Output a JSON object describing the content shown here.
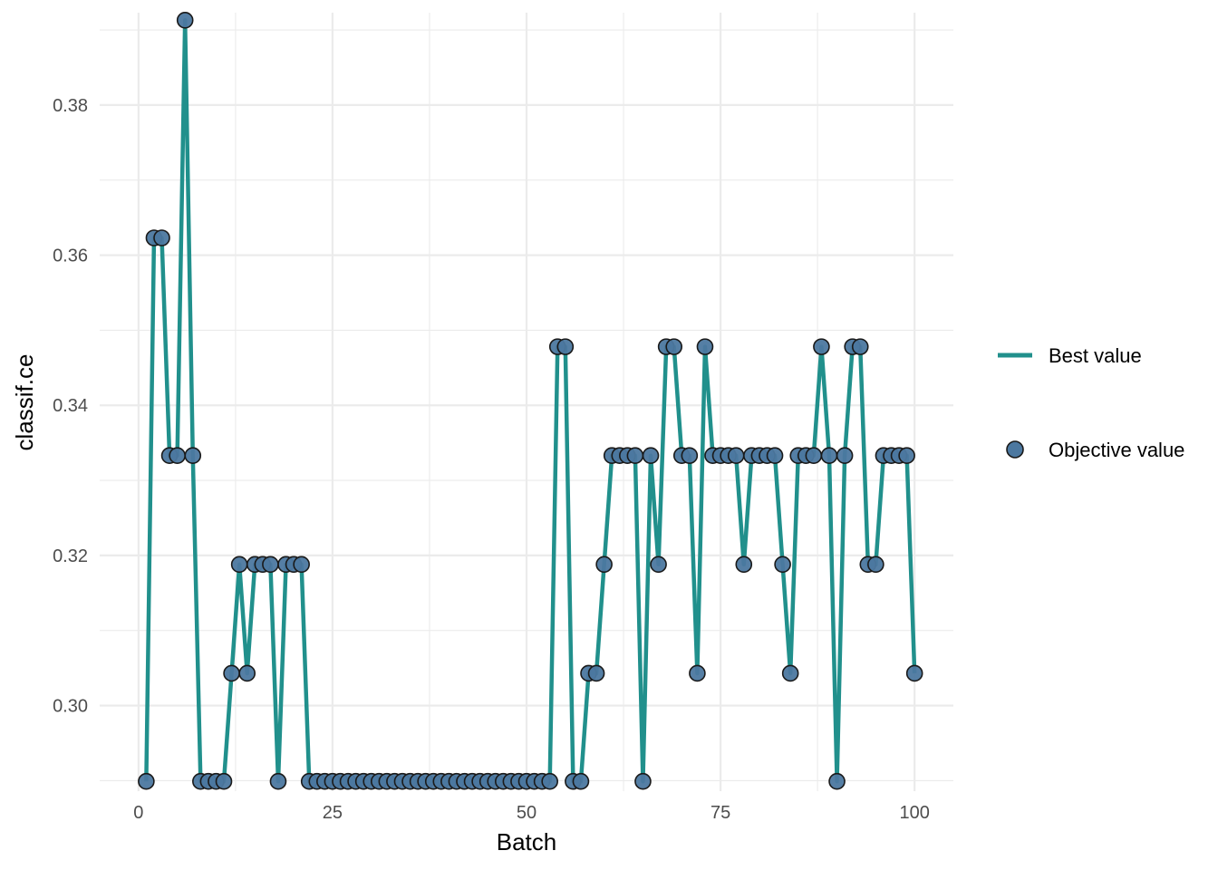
{
  "chart_data": {
    "type": "line",
    "xlabel": "Batch",
    "ylabel": "classif.ce",
    "xlim": [
      0,
      100
    ],
    "ylim": [
      0.2886,
      0.3923
    ],
    "x_ticks": [
      0,
      25,
      50,
      75,
      100
    ],
    "y_ticks": [
      0.3,
      0.32,
      0.34,
      0.36,
      0.38
    ],
    "x_tick_labels": [
      "0",
      "25",
      "50",
      "75",
      "100"
    ],
    "y_tick_labels": [
      "0.30",
      "0.32",
      "0.34",
      "0.36",
      "0.38"
    ],
    "grid": true,
    "legend_position": "right",
    "colors": {
      "line": "#21908C",
      "point_fill": "#4C78A0",
      "point_stroke": "#1a1a1a",
      "grid": "#ebebeb"
    },
    "series": [
      {
        "name": "Best value",
        "kind": "line",
        "x": [
          1,
          2,
          3,
          4,
          5,
          6,
          7,
          8,
          9,
          10,
          11,
          12,
          13,
          14,
          15,
          16,
          17,
          18,
          19,
          20,
          21,
          22,
          23,
          24,
          25,
          26,
          27,
          28,
          29,
          30,
          31,
          32,
          33,
          34,
          35,
          36,
          37,
          38,
          39,
          40,
          41,
          42,
          43,
          44,
          45,
          46,
          47,
          48,
          49,
          50,
          51,
          52,
          53,
          54,
          55,
          56,
          57,
          58,
          59,
          60,
          61,
          62,
          63,
          64,
          65,
          66,
          67,
          68,
          69,
          70,
          71,
          72,
          73,
          74,
          75,
          76,
          77,
          78,
          79,
          80,
          81,
          82,
          83,
          84,
          85,
          86,
          87,
          88,
          89,
          90,
          91,
          92,
          93,
          94,
          95,
          96,
          97,
          98,
          99,
          100
        ],
        "values": [
          0.2899,
          0.3623,
          0.3623,
          0.3333,
          0.3333,
          0.3913,
          0.3333,
          0.2899,
          0.2899,
          0.2899,
          0.2899,
          0.3043,
          0.3188,
          0.3043,
          0.3188,
          0.3188,
          0.3188,
          0.2899,
          0.3188,
          0.3188,
          0.3188,
          0.2899,
          0.2899,
          0.2899,
          0.2899,
          0.2899,
          0.2899,
          0.2899,
          0.2899,
          0.2899,
          0.2899,
          0.2899,
          0.2899,
          0.2899,
          0.2899,
          0.2899,
          0.2899,
          0.2899,
          0.2899,
          0.2899,
          0.2899,
          0.2899,
          0.2899,
          0.2899,
          0.2899,
          0.2899,
          0.2899,
          0.2899,
          0.2899,
          0.2899,
          0.2899,
          0.2899,
          0.2899,
          0.3478,
          0.3478,
          0.2899,
          0.2899,
          0.3043,
          0.3043,
          0.3188,
          0.3333,
          0.3333,
          0.3333,
          0.3333,
          0.2899,
          0.3333,
          0.3188,
          0.3478,
          0.3478,
          0.3333,
          0.3333,
          0.3043,
          0.3478,
          0.3333,
          0.3333,
          0.3333,
          0.3333,
          0.3188,
          0.3333,
          0.3333,
          0.3333,
          0.3333,
          0.3188,
          0.3043,
          0.3333,
          0.3333,
          0.3333,
          0.3478,
          0.3333,
          0.2899,
          0.3333,
          0.3478,
          0.3478,
          0.3188,
          0.3188,
          0.3333,
          0.3333,
          0.3333,
          0.3333,
          0.3043
        ]
      },
      {
        "name": "Objective value",
        "kind": "points",
        "x": [
          1,
          2,
          3,
          4,
          5,
          6,
          7,
          8,
          9,
          10,
          11,
          12,
          13,
          14,
          15,
          16,
          17,
          18,
          19,
          20,
          21,
          22,
          23,
          24,
          25,
          26,
          27,
          28,
          29,
          30,
          31,
          32,
          33,
          34,
          35,
          36,
          37,
          38,
          39,
          40,
          41,
          42,
          43,
          44,
          45,
          46,
          47,
          48,
          49,
          50,
          51,
          52,
          53,
          54,
          55,
          56,
          57,
          58,
          59,
          60,
          61,
          62,
          63,
          64,
          65,
          66,
          67,
          68,
          69,
          70,
          71,
          72,
          73,
          74,
          75,
          76,
          77,
          78,
          79,
          80,
          81,
          82,
          83,
          84,
          85,
          86,
          87,
          88,
          89,
          90,
          91,
          92,
          93,
          94,
          95,
          96,
          97,
          98,
          99,
          100
        ],
        "values": [
          0.2899,
          0.3623,
          0.3623,
          0.3333,
          0.3333,
          0.3913,
          0.3333,
          0.2899,
          0.2899,
          0.2899,
          0.2899,
          0.3043,
          0.3188,
          0.3043,
          0.3188,
          0.3188,
          0.3188,
          0.2899,
          0.3188,
          0.3188,
          0.3188,
          0.2899,
          0.2899,
          0.2899,
          0.2899,
          0.2899,
          0.2899,
          0.2899,
          0.2899,
          0.2899,
          0.2899,
          0.2899,
          0.2899,
          0.2899,
          0.2899,
          0.2899,
          0.2899,
          0.2899,
          0.2899,
          0.2899,
          0.2899,
          0.2899,
          0.2899,
          0.2899,
          0.2899,
          0.2899,
          0.2899,
          0.2899,
          0.2899,
          0.2899,
          0.2899,
          0.2899,
          0.2899,
          0.3478,
          0.3478,
          0.2899,
          0.2899,
          0.3043,
          0.3043,
          0.3188,
          0.3333,
          0.3333,
          0.3333,
          0.3333,
          0.2899,
          0.3333,
          0.3188,
          0.3478,
          0.3478,
          0.3333,
          0.3333,
          0.3043,
          0.3478,
          0.3333,
          0.3333,
          0.3333,
          0.3333,
          0.3188,
          0.3333,
          0.3333,
          0.3333,
          0.3333,
          0.3188,
          0.3043,
          0.3333,
          0.3333,
          0.3333,
          0.3478,
          0.3333,
          0.2899,
          0.3333,
          0.3478,
          0.3478,
          0.3188,
          0.3188,
          0.3333,
          0.3333,
          0.3333,
          0.3333,
          0.3043
        ]
      }
    ]
  }
}
